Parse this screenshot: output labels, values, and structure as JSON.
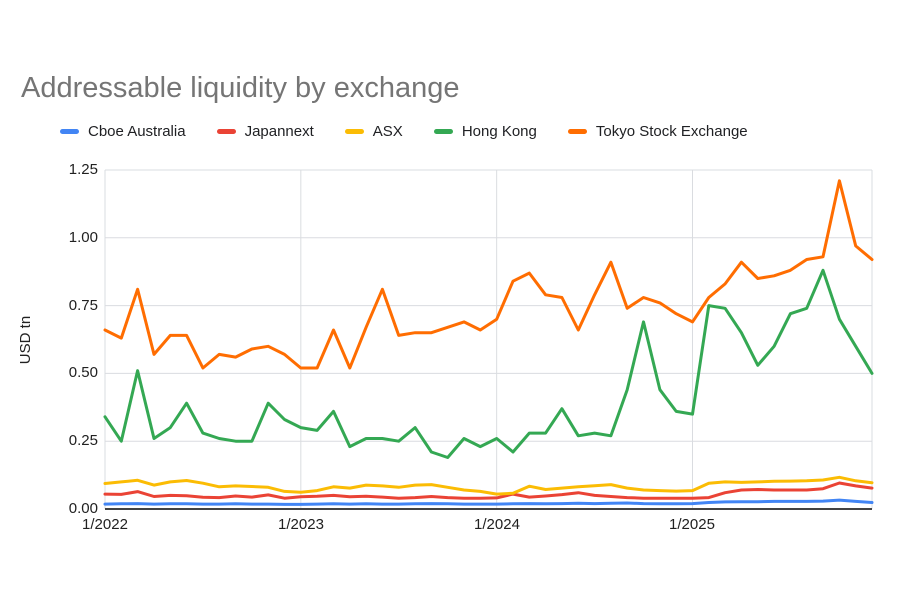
{
  "title": "Addressable liquidity by exchange",
  "y_axis": {
    "title": "USD tn",
    "ticks": [
      "1.25",
      "1.00",
      "0.75",
      "0.50",
      "0.25",
      "0.00"
    ]
  },
  "x_axis": {
    "ticks": [
      "1/2022",
      "1/2023",
      "1/2024",
      "1/2025"
    ]
  },
  "chart_data": {
    "type": "line",
    "title": "Addressable liquidity by exchange",
    "xlabel": "",
    "ylabel": "USD tn",
    "ylim": [
      0,
      1.25
    ],
    "grid": true,
    "legend_position": "top",
    "x_interval": "monthly",
    "categories": [
      "1/2022",
      "2/2022",
      "3/2022",
      "4/2022",
      "5/2022",
      "6/2022",
      "7/2022",
      "8/2022",
      "9/2022",
      "10/2022",
      "11/2022",
      "12/2022",
      "1/2023",
      "2/2023",
      "3/2023",
      "4/2023",
      "5/2023",
      "6/2023",
      "7/2023",
      "8/2023",
      "9/2023",
      "10/2023",
      "11/2023",
      "12/2023",
      "1/2024",
      "2/2024",
      "3/2024",
      "4/2024",
      "5/2024",
      "6/2024",
      "7/2024",
      "8/2024",
      "9/2024",
      "10/2024",
      "11/2024",
      "12/2024",
      "1/2025",
      "2/2025",
      "3/2025",
      "4/2025",
      "5/2025",
      "6/2025",
      "7/2025",
      "8/2025",
      "9/2025",
      "10/2025",
      "11/2025",
      "12/2025"
    ],
    "series": [
      {
        "name": "Cboe Australia",
        "color": "#4285F4",
        "values": [
          0.018,
          0.019,
          0.02,
          0.018,
          0.019,
          0.019,
          0.018,
          0.018,
          0.019,
          0.018,
          0.018,
          0.017,
          0.017,
          0.018,
          0.019,
          0.018,
          0.019,
          0.018,
          0.018,
          0.019,
          0.02,
          0.019,
          0.018,
          0.018,
          0.018,
          0.019,
          0.02,
          0.019,
          0.02,
          0.021,
          0.02,
          0.021,
          0.022,
          0.02,
          0.019,
          0.019,
          0.02,
          0.024,
          0.026,
          0.027,
          0.027,
          0.028,
          0.028,
          0.028,
          0.029,
          0.033,
          0.028,
          0.024
        ]
      },
      {
        "name": "Japannext",
        "color": "#EA4335",
        "values": [
          0.055,
          0.054,
          0.064,
          0.046,
          0.05,
          0.049,
          0.043,
          0.042,
          0.048,
          0.044,
          0.052,
          0.04,
          0.045,
          0.047,
          0.05,
          0.045,
          0.047,
          0.044,
          0.04,
          0.042,
          0.046,
          0.042,
          0.04,
          0.04,
          0.041,
          0.055,
          0.044,
          0.048,
          0.053,
          0.06,
          0.05,
          0.046,
          0.042,
          0.04,
          0.04,
          0.04,
          0.04,
          0.042,
          0.06,
          0.07,
          0.072,
          0.07,
          0.07,
          0.07,
          0.075,
          0.096,
          0.085,
          0.077
        ]
      },
      {
        "name": "ASX",
        "color": "#FBBC04",
        "values": [
          0.094,
          0.1,
          0.106,
          0.088,
          0.1,
          0.105,
          0.095,
          0.082,
          0.085,
          0.083,
          0.08,
          0.065,
          0.062,
          0.068,
          0.082,
          0.077,
          0.088,
          0.085,
          0.08,
          0.088,
          0.09,
          0.08,
          0.07,
          0.065,
          0.055,
          0.058,
          0.084,
          0.072,
          0.077,
          0.082,
          0.086,
          0.09,
          0.077,
          0.07,
          0.068,
          0.066,
          0.068,
          0.095,
          0.1,
          0.098,
          0.1,
          0.102,
          0.103,
          0.104,
          0.107,
          0.117,
          0.104,
          0.097
        ]
      },
      {
        "name": "Hong Kong",
        "color": "#34A853",
        "values": [
          0.34,
          0.25,
          0.51,
          0.26,
          0.3,
          0.39,
          0.28,
          0.26,
          0.25,
          0.25,
          0.39,
          0.33,
          0.3,
          0.29,
          0.36,
          0.23,
          0.26,
          0.26,
          0.25,
          0.3,
          0.21,
          0.19,
          0.26,
          0.23,
          0.26,
          0.21,
          0.28,
          0.28,
          0.37,
          0.27,
          0.28,
          0.27,
          0.44,
          0.69,
          0.44,
          0.36,
          0.35,
          0.75,
          0.74,
          0.65,
          0.53,
          0.6,
          0.72,
          0.74,
          0.88,
          0.7,
          0.6,
          0.5
        ]
      },
      {
        "name": "Tokyo Stock Exchange",
        "color": "#FF6D01",
        "values": [
          0.66,
          0.63,
          0.81,
          0.57,
          0.64,
          0.64,
          0.52,
          0.57,
          0.56,
          0.59,
          0.6,
          0.57,
          0.52,
          0.52,
          0.66,
          0.52,
          0.67,
          0.81,
          0.64,
          0.65,
          0.65,
          0.67,
          0.69,
          0.66,
          0.7,
          0.84,
          0.87,
          0.79,
          0.78,
          0.66,
          0.79,
          0.91,
          0.74,
          0.78,
          0.76,
          0.72,
          0.69,
          0.78,
          0.83,
          0.91,
          0.85,
          0.86,
          0.88,
          0.92,
          0.93,
          1.21,
          0.97,
          0.92
        ]
      }
    ],
    "colors": {
      "axis_line": "#424242",
      "gridline": "#dadce0",
      "title_text": "#757575",
      "tick_text": "#212121"
    }
  }
}
